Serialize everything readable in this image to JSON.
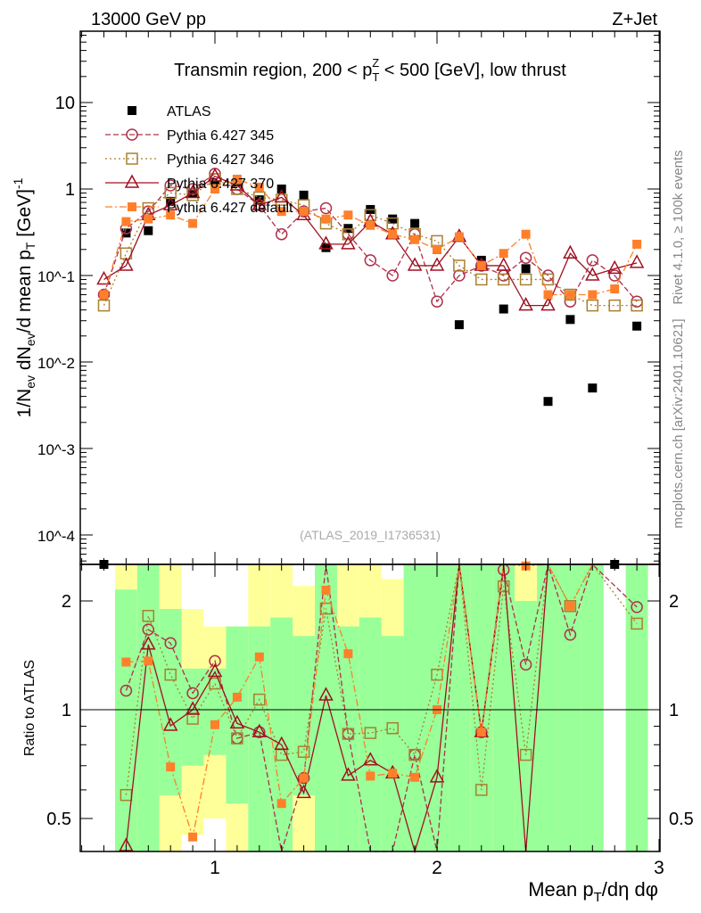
{
  "header": {
    "left": "13000 GeV pp",
    "right": "Z+Jet"
  },
  "side": {
    "rivet": "Rivet 4.1.0, ≥ 100k events",
    "mcplots": "mcplots.cern.ch [arXiv:2401.10621]"
  },
  "watermark": "(ATLAS_2019_I1736531)",
  "chart_data": {
    "type": "scatter",
    "title": "Transmin region, 200 < p_T^Z < 500 [GeV], low thrust",
    "title_parts": {
      "pre": "Transmin region, 200 < p",
      "sub": "T",
      "sup": "Z",
      "post": " < 500 [GeV], low thrust"
    },
    "ylabel": "1/N_ev dN_ev/d mean p_T [GeV]^-1",
    "ylabel_parts": {
      "a": "1/N",
      "a_sub": "ev",
      "b": " dN",
      "b_sub": "ev",
      "c": "/d mean p",
      "c_sub": "T",
      "d": " [GeV]",
      "d_sup": "-1"
    },
    "xlabel": "Mean p_T/dη dφ",
    "xlabel_parts": {
      "a": "Mean p",
      "a_sub": "T",
      "b": "/dη dφ"
    },
    "ratio_ylabel": "Ratio to ATLAS",
    "xlim": [
      0.4,
      3.0
    ],
    "ylim": [
      4.5e-05,
      66
    ],
    "yscale": "log",
    "ratio_ylim": [
      0.405,
      2.52
    ],
    "x_tick_labels": [
      "1",
      "2",
      "3"
    ],
    "y_tick_labels": [
      "10^-4",
      "10^-3",
      "10^-2",
      "10^-1",
      "1",
      "10"
    ],
    "ratio_tick_labels": [
      "0.5",
      "1",
      "2"
    ],
    "x": [
      0.5,
      0.6,
      0.7,
      0.8,
      0.9,
      1.0,
      1.1,
      1.2,
      1.3,
      1.4,
      1.5,
      1.6,
      1.7,
      1.8,
      1.9,
      2.0,
      2.1,
      2.2,
      2.3,
      2.4,
      2.5,
      2.6,
      2.7,
      2.8,
      2.9
    ],
    "series": [
      {
        "name": "ATLAS",
        "color": "#000000",
        "marker": "filled-square",
        "values": [
          4e-05,
          0.31,
          0.33,
          0.72,
          0.9,
          1.1,
          1.2,
          0.75,
          1.0,
          0.85,
          0.21,
          0.35,
          0.58,
          0.45,
          0.4,
          0.2,
          0.027,
          0.15,
          0.041,
          0.12,
          0.0035,
          0.031,
          0.005,
          4e-05,
          0.026
        ]
      },
      {
        "name": "Pythia 6.427 345",
        "color": "#b0304a",
        "marker": "open-circle",
        "dash": "6,3",
        "values": [
          0.06,
          0.35,
          0.55,
          1.1,
          1.0,
          1.5,
          1.0,
          0.65,
          0.3,
          0.55,
          0.6,
          0.3,
          0.15,
          0.1,
          0.3,
          0.05,
          0.1,
          0.13,
          0.1,
          0.16,
          0.1,
          0.05,
          0.15,
          0.1,
          0.05
        ]
      },
      {
        "name": "Pythia 6.427 346",
        "color": "#a88030",
        "marker": "open-square",
        "dash": "2,3",
        "values": [
          0.045,
          0.18,
          0.6,
          0.9,
          0.85,
          1.3,
          1.0,
          0.8,
          0.75,
          0.65,
          0.4,
          0.3,
          0.5,
          0.4,
          0.3,
          0.25,
          0.13,
          0.09,
          0.09,
          0.09,
          0.09,
          0.06,
          0.045,
          0.045,
          0.045
        ]
      },
      {
        "name": "Pythia 6.427 370",
        "color": "#a01020",
        "marker": "open-triangle",
        "dash": "",
        "values": [
          0.09,
          0.13,
          0.5,
          0.65,
          0.9,
          1.4,
          1.1,
          0.65,
          0.8,
          0.5,
          0.23,
          0.23,
          0.42,
          0.3,
          0.13,
          0.13,
          0.28,
          0.13,
          0.13,
          0.045,
          0.045,
          0.18,
          0.1,
          0.12,
          0.14
        ]
      },
      {
        "name": "Pythia 6.427 default",
        "color": "#ff7f2a",
        "marker": "filled-square",
        "dash": "8,3,2,3",
        "values": [
          0.06,
          0.42,
          0.45,
          0.5,
          0.4,
          1.0,
          1.3,
          1.05,
          0.55,
          0.55,
          0.45,
          0.5,
          0.38,
          0.3,
          0.26,
          0.2,
          0.28,
          0.13,
          0.18,
          0.3,
          0.06,
          0.06,
          0.06,
          0.07,
          0.23
        ]
      }
    ],
    "ratio_bands": {
      "colors": {
        "stat": "#99ff99",
        "total": "#ffff99"
      },
      "green": [
        null,
        [
          0.4,
          2.15
        ],
        [
          0.4,
          2.52
        ],
        [
          0.58,
          1.9
        ],
        [
          0.7,
          1.3
        ],
        [
          0.75,
          1.3
        ],
        [
          0.55,
          1.7
        ],
        [
          0.4,
          1.7
        ],
        [
          0.4,
          1.8
        ],
        [
          0.58,
          1.6
        ],
        [
          0.4,
          2.52
        ],
        [
          0.4,
          1.7
        ],
        [
          0.4,
          1.8
        ],
        [
          0.4,
          1.6
        ],
        [
          0.4,
          2.52
        ],
        [
          0.4,
          2.52
        ],
        [
          0.4,
          2.52
        ],
        [
          0.4,
          2.52
        ],
        [
          0.4,
          2.52
        ],
        [
          0.4,
          2.0
        ],
        [
          0.4,
          2.52
        ],
        [
          0.4,
          2.52
        ],
        [
          0.4,
          2.52
        ],
        null,
        [
          0.4,
          2.52
        ]
      ],
      "yellow": [
        null,
        [
          0.4,
          2.52
        ],
        [
          0.4,
          2.52
        ],
        [
          0.4,
          2.52
        ],
        [
          0.45,
          1.9
        ],
        [
          0.5,
          1.7
        ],
        [
          0.4,
          1.7
        ],
        [
          0.4,
          2.52
        ],
        [
          0.4,
          2.52
        ],
        [
          0.4,
          2.2
        ],
        [
          0.4,
          2.52
        ],
        [
          0.4,
          2.52
        ],
        [
          0.4,
          2.52
        ],
        [
          0.4,
          2.3
        ],
        [
          0.4,
          2.52
        ],
        [
          0.4,
          2.52
        ],
        [
          0.4,
          2.52
        ],
        [
          0.4,
          2.52
        ],
        [
          0.4,
          2.52
        ],
        [
          0.4,
          2.52
        ],
        [
          0.4,
          2.52
        ],
        [
          0.4,
          2.52
        ],
        [
          0.4,
          2.52
        ],
        null,
        [
          0.4,
          2.52
        ]
      ]
    }
  }
}
